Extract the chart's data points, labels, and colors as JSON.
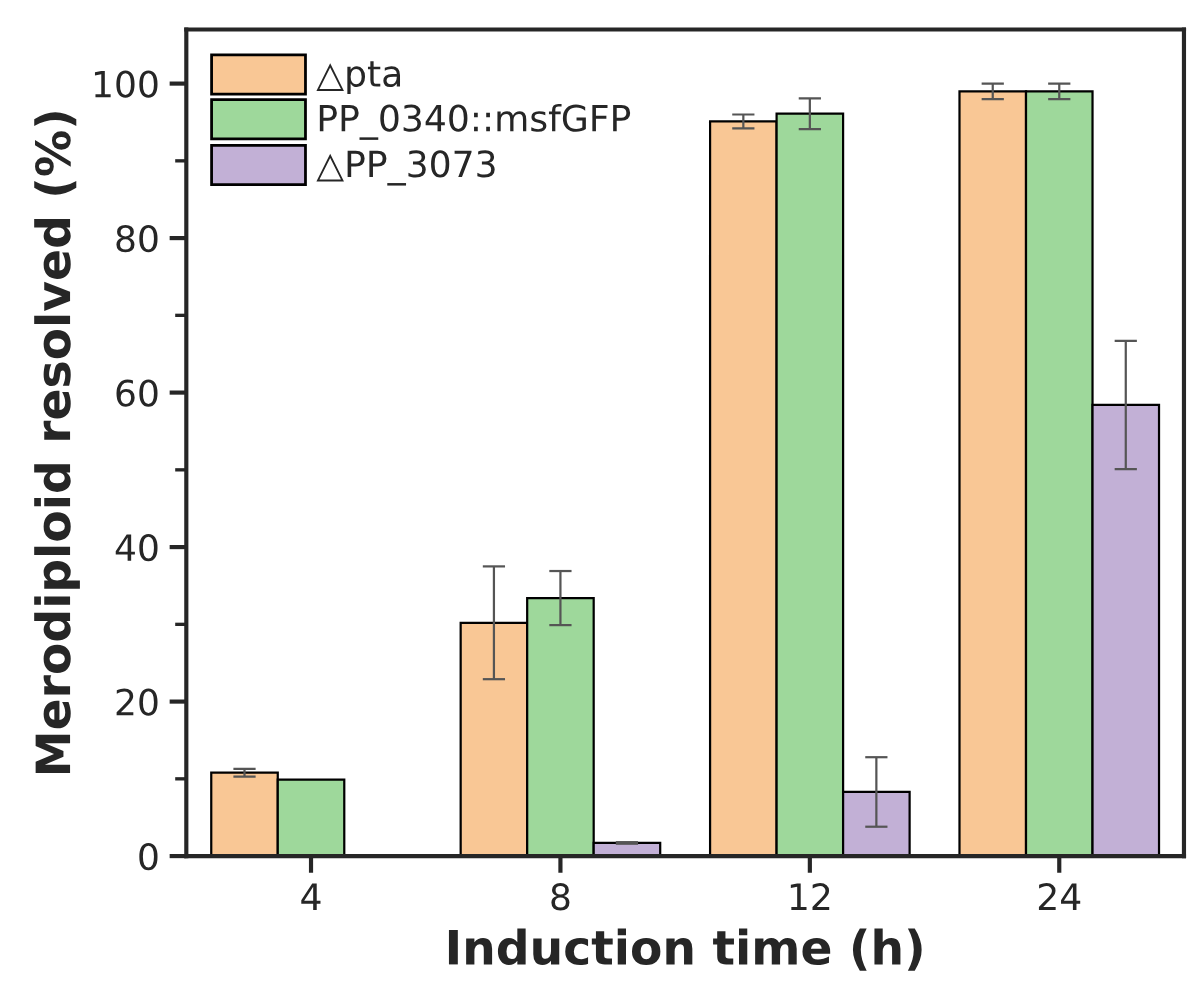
{
  "chart_data": {
    "type": "bar",
    "xlabel": "Induction time (h)",
    "ylabel": "Merodiploid resolved (%)",
    "categories": [
      "4",
      "8",
      "12",
      "24"
    ],
    "series": [
      {
        "name": "△pta",
        "color": "#f9c795",
        "values": [
          10.8,
          30.2,
          95.1,
          99.0
        ],
        "errors": [
          0.5,
          7.3,
          0.9,
          1.0
        ]
      },
      {
        "name": "PP_0340::msfGFP",
        "color": "#9ed89b",
        "values": [
          9.9,
          33.4,
          96.1,
          99.0
        ],
        "errors": [
          null,
          3.5,
          2.0,
          1.0
        ]
      },
      {
        "name": "△PP_3073",
        "color": "#c2b0d6",
        "values": [
          null,
          1.7,
          8.3,
          58.4
        ],
        "errors": [
          null,
          0.1,
          4.5,
          8.3
        ]
      }
    ],
    "ylim": [
      0,
      107
    ],
    "yticks": [
      0,
      20,
      40,
      60,
      80,
      100
    ],
    "grid": false,
    "legend": "top left"
  }
}
